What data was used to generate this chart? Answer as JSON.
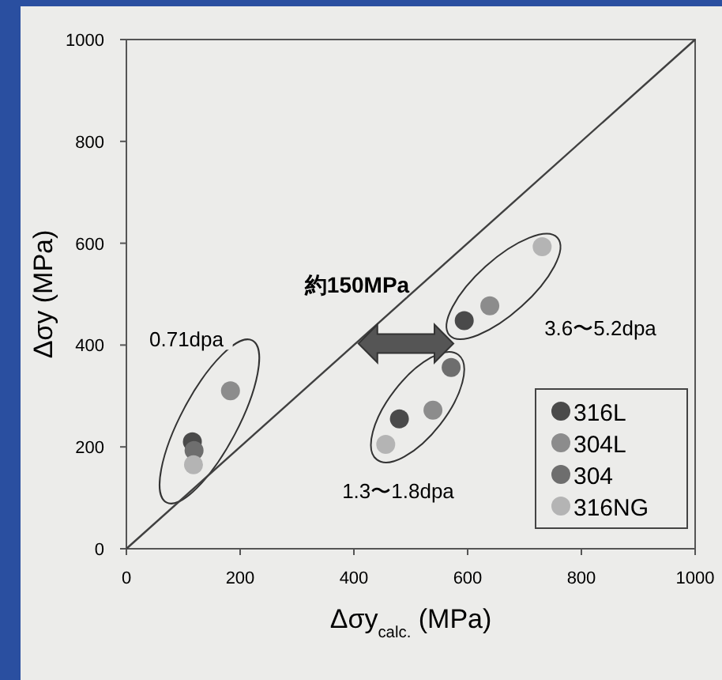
{
  "chart_data": {
    "type": "scatter",
    "xlabel": "Δσy$_{calc.}$ (MPa)",
    "ylabel": "Δσy (MPa)",
    "xlim": [
      0,
      1000
    ],
    "ylim": [
      0,
      1000
    ],
    "xticks": [
      0,
      200,
      400,
      600,
      800,
      1000
    ],
    "yticks": [
      0,
      200,
      400,
      600,
      800,
      1000
    ],
    "grid": false,
    "legend": "bottom right",
    "marker": "circle",
    "series": [
      {
        "name": "316L",
        "color": "#4a4a4a",
        "x": [
          116,
          480,
          594
        ],
        "values": [
          210,
          255,
          448
        ]
      },
      {
        "name": "304L",
        "color": "#8c8c8c",
        "x": [
          183,
          539,
          639
        ],
        "values": [
          310,
          272,
          477
        ]
      },
      {
        "name": "304",
        "color": "#6e6e6e",
        "x": [
          119,
          571
        ],
        "values": [
          193,
          356
        ]
      },
      {
        "name": "316NG",
        "color": "#b4b4b4",
        "x": [
          118,
          456,
          731
        ],
        "values": [
          165,
          205,
          593
        ]
      },
      {
        "type": "line",
        "color": "#404040",
        "x": [
          0,
          1000
        ],
        "values": [
          0,
          1000
        ],
        "marker": "none"
      }
    ],
    "annotations": [
      "約150MPa",
      "0.71dpa",
      "1.3〜1.8dpa",
      "3.6〜5.2dpa"
    ]
  }
}
